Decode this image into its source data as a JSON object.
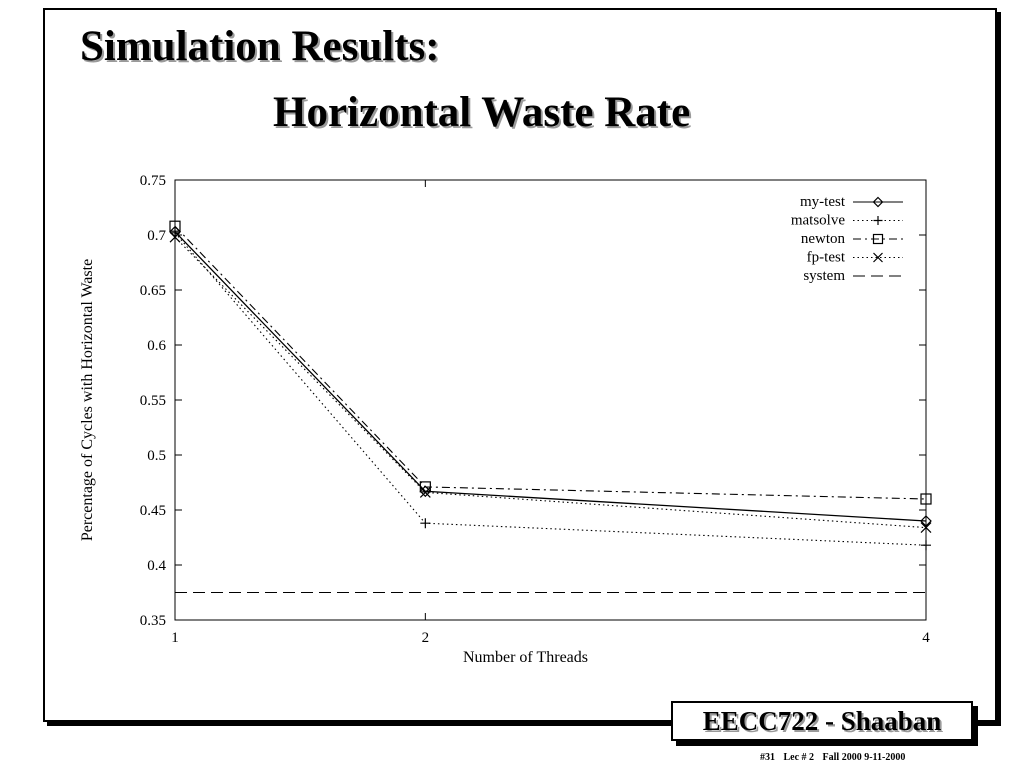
{
  "slide": {
    "title_line1": "Simulation Results:",
    "title_line2": "Horizontal Waste Rate",
    "badge": "EECC722 - Shaaban",
    "footer": {
      "slide_no": "#31",
      "lecture": "Lec # 2",
      "term_date": "Fall 2000 9-11-2000"
    }
  },
  "chart_data": {
    "type": "line",
    "xlabel": "Number of Threads",
    "ylabel": "Percentage of Cycles with Horizontal Waste",
    "x": [
      1,
      2,
      4
    ],
    "x_tick_labels": [
      "1",
      "2",
      "4"
    ],
    "ylim": [
      0.35,
      0.75
    ],
    "y_ticks": [
      0.35,
      0.4,
      0.45,
      0.5,
      0.55,
      0.6,
      0.65,
      0.7,
      0.75
    ],
    "y_tick_labels": [
      "0.35",
      "0.4",
      "0.45",
      "0.5",
      "0.55",
      "0.6",
      "0.65",
      "0.7",
      "0.75"
    ],
    "grid": false,
    "legend_position": "top-right",
    "series": [
      {
        "name": "my-test",
        "marker": "diamond",
        "dash": "solid",
        "values": [
          0.703,
          0.467,
          0.44
        ]
      },
      {
        "name": "matsolve",
        "marker": "plus",
        "dash": "dotted",
        "values": [
          0.702,
          0.438,
          0.418
        ]
      },
      {
        "name": "newton",
        "marker": "square",
        "dash": "dash-dot",
        "values": [
          0.708,
          0.471,
          0.46
        ]
      },
      {
        "name": "fp-test",
        "marker": "x",
        "dash": "dotted",
        "values": [
          0.698,
          0.466,
          0.434
        ]
      },
      {
        "name": "system",
        "marker": "none",
        "dash": "long-dash",
        "values": [
          0.375,
          0.375,
          0.375
        ]
      }
    ]
  }
}
